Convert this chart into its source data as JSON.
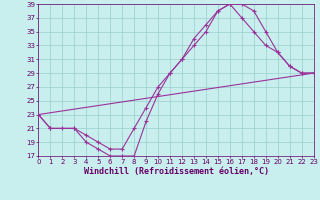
{
  "bg_color": "#c8eeee",
  "grid_color": "#a0d4d4",
  "line_color": "#993399",
  "font_color": "#660066",
  "xlim": [
    0,
    23
  ],
  "ylim": [
    17,
    39
  ],
  "xtick_vals": [
    0,
    1,
    2,
    3,
    4,
    5,
    6,
    7,
    8,
    9,
    10,
    11,
    12,
    13,
    14,
    15,
    16,
    17,
    18,
    19,
    20,
    21,
    22,
    23
  ],
  "ytick_vals": [
    17,
    19,
    21,
    23,
    25,
    27,
    29,
    31,
    33,
    35,
    37,
    39
  ],
  "xlabel": "Windchill (Refroidissement éolien,°C)",
  "curve1_x": [
    0,
    1,
    3,
    4,
    5,
    6,
    7,
    8,
    9,
    10,
    11,
    12,
    13,
    14,
    15,
    16,
    17,
    18,
    19,
    20,
    21,
    22,
    23
  ],
  "curve1_y": [
    23,
    21,
    21,
    19,
    18,
    17,
    17,
    17,
    22,
    26,
    29,
    31,
    34,
    36,
    38,
    39,
    39,
    38,
    35,
    32,
    30,
    29,
    29
  ],
  "curve2_x": [
    0,
    1,
    2,
    3,
    4,
    5,
    6,
    7,
    8,
    9,
    10,
    11,
    12,
    13,
    14,
    15,
    16,
    17,
    18,
    19,
    20,
    21,
    22,
    23
  ],
  "curve2_y": [
    23,
    21,
    21,
    21,
    20,
    19,
    18,
    18,
    21,
    24,
    27,
    29,
    31,
    33,
    35,
    38,
    39,
    37,
    35,
    33,
    32,
    30,
    29,
    29
  ],
  "curve3_x": [
    0,
    23
  ],
  "curve3_y": [
    23,
    29
  ],
  "tick_fontsize": 5,
  "label_fontsize": 6
}
